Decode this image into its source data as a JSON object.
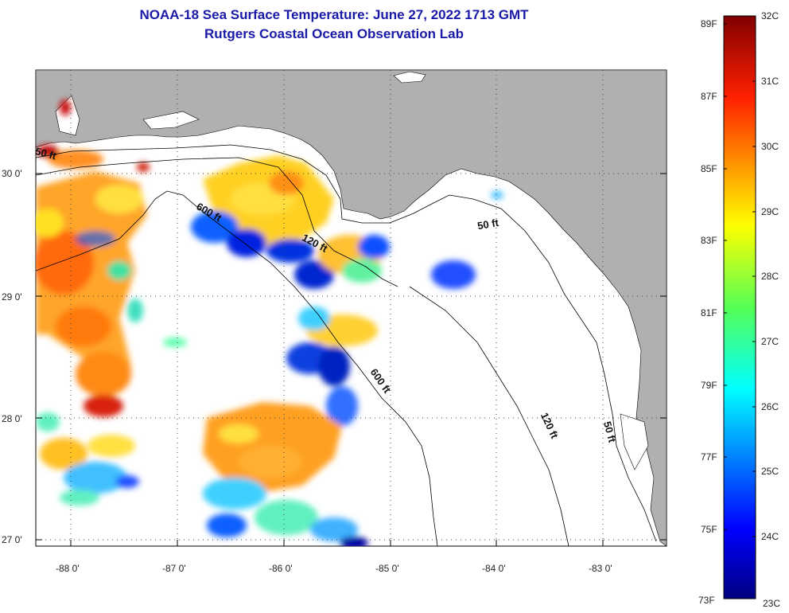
{
  "title": {
    "line1": "NOAA-18 Sea Surface Temperature:  June 27, 2022 1713 GMT",
    "line2": "Rutgers Coastal Ocean Observation Lab"
  },
  "axes": {
    "lat_labels": [
      "30 0'",
      "29 0'",
      "28 0'",
      "27 0'"
    ],
    "lon_labels": [
      "-88 0'",
      "-87 0'",
      "-86 0'",
      "-85 0'",
      "-84 0'",
      "-83 0'"
    ]
  },
  "contours": {
    "labels": [
      "50 ft",
      "600 ft",
      "120 ft",
      "50 ft",
      "600 ft",
      "120 ft",
      "50 ft"
    ]
  },
  "colorbar": {
    "fahrenheit": [
      "89F",
      "87F",
      "85F",
      "83F",
      "81F",
      "79F",
      "77F",
      "75F",
      "73F"
    ],
    "celsius": [
      "32C",
      "31C",
      "30C",
      "29C",
      "28C",
      "27C",
      "26C",
      "25C",
      "24C",
      "23C"
    ]
  },
  "colors": {
    "land": "#b0b0b0",
    "title": "#1a1aa8",
    "cold": "#0000a0",
    "warm": "#ff2000"
  }
}
